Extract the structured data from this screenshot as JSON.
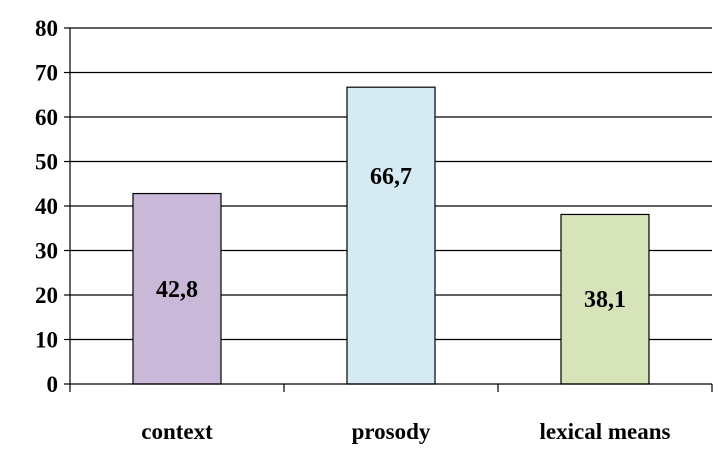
{
  "chart_data": {
    "type": "bar",
    "categories": [
      "context",
      "prosody",
      "lexical means"
    ],
    "values": [
      42.8,
      66.7,
      38.1
    ],
    "data_labels": [
      "42,8",
      "66,7",
      "38,1"
    ],
    "colors": [
      "#c9b8d8",
      "#d6eaf4",
      "#d7e3b9"
    ],
    "ylim": [
      0,
      80
    ],
    "yticks": [
      0,
      10,
      20,
      30,
      40,
      50,
      60,
      70,
      80
    ],
    "grid": true,
    "title": "",
    "xlabel": "",
    "ylabel": ""
  }
}
